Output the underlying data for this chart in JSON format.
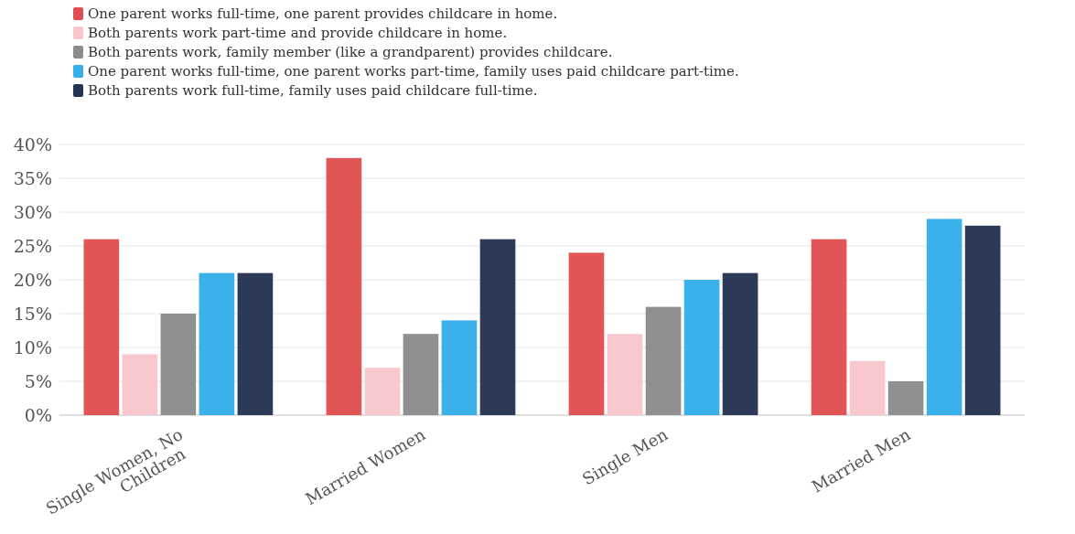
{
  "chart_data": {
    "type": "bar",
    "categories": [
      "Single Women, No Children",
      "Married Women",
      "Single Men",
      "Married Men"
    ],
    "series": [
      {
        "name": "One parent works full-time, one parent provides childcare in home.",
        "color": "#e05052",
        "values": [
          26,
          38,
          24,
          26
        ]
      },
      {
        "name": "Both parents work part-time and provide childcare in home.",
        "color": "#f9c6cc",
        "values": [
          9,
          7,
          12,
          8
        ]
      },
      {
        "name": "Both parents work, family member (like a grandparent) provides childcare.",
        "color": "#8c8c8c",
        "values": [
          15,
          12,
          16,
          5
        ]
      },
      {
        "name": "One parent works full-time, one parent works part-time, family uses paid childcare part-time.",
        "color": "#35aee9",
        "values": [
          21,
          14,
          20,
          29
        ]
      },
      {
        "name": "Both parents work full-time, family uses paid childcare full-time.",
        "color": "#253352",
        "values": [
          21,
          26,
          21,
          28
        ]
      }
    ],
    "ylim": [
      0,
      40
    ],
    "yticks": [
      {
        "value": 0,
        "label": "0%"
      },
      {
        "value": 5,
        "label": "5%"
      },
      {
        "value": 10,
        "label": "10%"
      },
      {
        "value": 15,
        "label": "15%"
      },
      {
        "value": 20,
        "label": "20%"
      },
      {
        "value": 25,
        "label": "25%"
      },
      {
        "value": 30,
        "label": "30%"
      },
      {
        "value": 35,
        "label": "35%"
      },
      {
        "value": 40,
        "label": "40%"
      }
    ],
    "grid": "y",
    "legend": "top left"
  }
}
